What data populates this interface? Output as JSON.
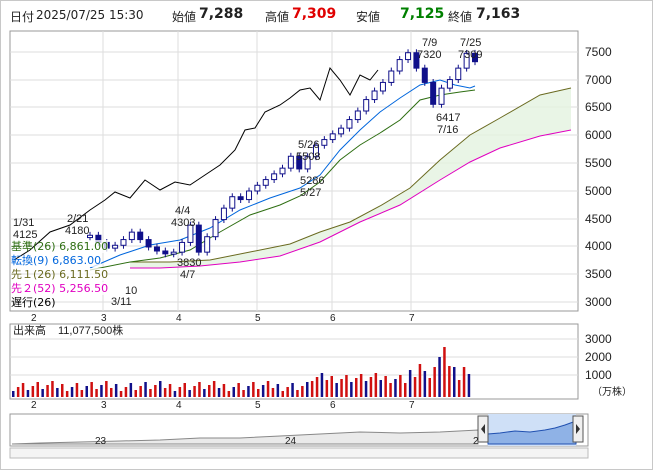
{
  "header": {
    "date_label": "日付",
    "datetime": "2025/07/25 15:30",
    "open_label": "始値",
    "open": "7,288",
    "high_label": "高値",
    "high": "7,309",
    "low_label": "安値",
    "low": "7,125",
    "close_label": "終値",
    "close": "7,163"
  },
  "colors": {
    "high": "#e00000",
    "low": "#008000",
    "tenkan": "#0066dd",
    "kijun": "#2e6e12",
    "span_a": "#6a6a20",
    "span_b": "#e000c0",
    "lagging": "#000000",
    "volume_up": "#d01010",
    "volume_down": "#10108a"
  },
  "legend": [
    {
      "label": "基準(26)",
      "value": "6,861.00",
      "color": "#2e6e12"
    },
    {
      "label": "転換(9)",
      "value": "6,863.00",
      "color": "#0066dd"
    },
    {
      "label": "先１(26)",
      "value": "6,111.50",
      "color": "#6a6a20"
    },
    {
      "label": "先２(52)",
      "value": "5,256.50",
      "color": "#e000c0"
    },
    {
      "label": "遅行(26)",
      "value": "",
      "color": "#000000"
    }
  ],
  "price_axis": [
    "7500",
    "7000",
    "6500",
    "6000",
    "5500",
    "5000",
    "4500",
    "4000",
    "3500",
    "3000"
  ],
  "month_labels": [
    "2",
    "3",
    "4",
    "5",
    "6",
    "7"
  ],
  "annotations": [
    {
      "lines": [
        "1/31",
        "4125"
      ]
    },
    {
      "lines": [
        "2/21",
        "4180"
      ]
    },
    {
      "lines": [
        "4/4",
        "4303"
      ]
    },
    {
      "lines": [
        "3830",
        "4/7"
      ]
    },
    {
      "lines": [
        "5/26",
        "5508"
      ]
    },
    {
      "lines": [
        "5286",
        "5/27"
      ]
    },
    {
      "lines": [
        "7/9",
        "7320"
      ]
    },
    {
      "lines": [
        "7/25",
        "7309"
      ]
    },
    {
      "lines": [
        "6417",
        "7/16"
      ]
    },
    {
      "lines": [
        "10",
        "3/11"
      ]
    }
  ],
  "volume": {
    "label": "出来高",
    "value": "11,077,500株",
    "axis": [
      "3000",
      "2000",
      "1000"
    ],
    "unit": "（万株）"
  },
  "navigator": {
    "labels": [
      "23",
      "24",
      "2"
    ]
  },
  "chart_data": {
    "type": "line",
    "series": [
      {
        "name": "終値",
        "values": [
          4125,
          4000,
          3900,
          3950,
          4050,
          4180,
          4050,
          3920,
          3850,
          3800,
          3830,
          4000,
          4303,
          3830,
          4100,
          4400,
          4600,
          4800,
          4750,
          4900,
          5000,
          5100,
          5200,
          5300,
          5508,
          5286,
          5500,
          5700,
          5800,
          5900,
          6000,
          6150,
          6300,
          6500,
          6650,
          6800,
          7000,
          7200,
          7320,
          7050,
          6800,
          6417,
          6700,
          6850,
          7050,
          7309,
          7163
        ]
      }
    ],
    "ylim": [
      2800,
      7700
    ]
  }
}
